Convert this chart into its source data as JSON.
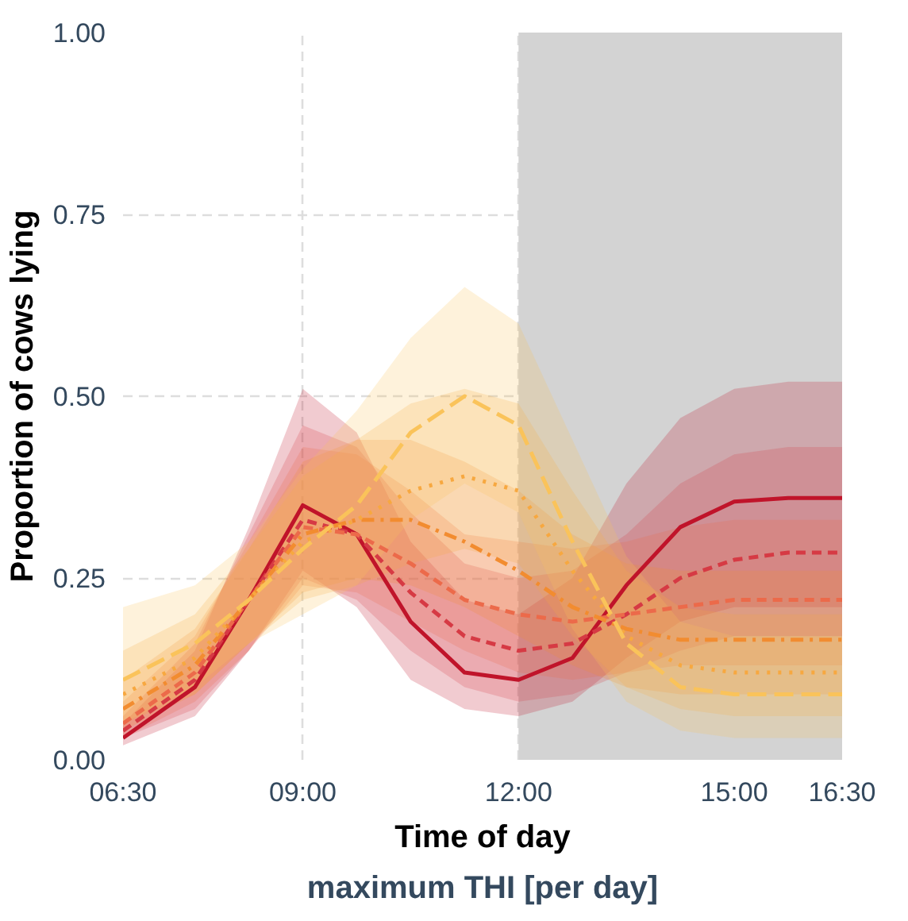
{
  "chart_data": {
    "type": "line",
    "xlabel": "Time of day",
    "ylabel": "Proportion of cows lying",
    "legend_title": "maximum THI [per day]",
    "x": [
      6.5,
      7.5,
      8.25,
      9,
      9.75,
      10.5,
      11.25,
      12,
      12.75,
      13.5,
      14.25,
      15,
      15.75,
      16.5
    ],
    "xlim": [
      6.5,
      16.5
    ],
    "xticks": [
      {
        "value": 6.5,
        "label": "06:30"
      },
      {
        "value": 9,
        "label": "09:00"
      },
      {
        "value": 12,
        "label": "12:00"
      },
      {
        "value": 15,
        "label": "15:00"
      },
      {
        "value": 16.5,
        "label": "16:30"
      }
    ],
    "ylim": [
      0,
      1
    ],
    "yticks": [
      {
        "value": 0,
        "label": "0.00"
      },
      {
        "value": 0.25,
        "label": "0.25"
      },
      {
        "value": 0.5,
        "label": "0.50"
      },
      {
        "value": 0.75,
        "label": "0.75"
      },
      {
        "value": 1,
        "label": "1.00"
      }
    ],
    "grid": true,
    "bands": [
      {
        "axis": "x",
        "from": 12,
        "to": 16.5,
        "color": "#d3d3d3"
      }
    ],
    "series": [
      {
        "color": "#c0142a",
        "line_style": "solid",
        "values": [
          0.03,
          0.1,
          0.22,
          0.35,
          0.31,
          0.19,
          0.12,
          0.11,
          0.14,
          0.24,
          0.32,
          0.355,
          0.36,
          0.36
        ],
        "lower": [
          0.02,
          0.06,
          0.15,
          0.26,
          0.21,
          0.11,
          0.07,
          0.06,
          0.08,
          0.14,
          0.19,
          0.21,
          0.21,
          0.21
        ],
        "upper": [
          0.05,
          0.15,
          0.32,
          0.51,
          0.45,
          0.3,
          0.22,
          0.2,
          0.25,
          0.38,
          0.47,
          0.51,
          0.52,
          0.52
        ]
      },
      {
        "color": "#d63a44",
        "line_style": "dashed",
        "values": [
          0.04,
          0.11,
          0.22,
          0.33,
          0.31,
          0.23,
          0.17,
          0.15,
          0.16,
          0.2,
          0.25,
          0.275,
          0.285,
          0.285
        ],
        "lower": [
          0.03,
          0.07,
          0.15,
          0.25,
          0.22,
          0.15,
          0.1,
          0.08,
          0.09,
          0.12,
          0.15,
          0.17,
          0.17,
          0.17
        ],
        "upper": [
          0.06,
          0.16,
          0.31,
          0.46,
          0.43,
          0.34,
          0.27,
          0.25,
          0.26,
          0.31,
          0.38,
          0.42,
          0.43,
          0.43
        ]
      },
      {
        "color": "#ec6a4a",
        "line_style": "dashed",
        "values": [
          0.05,
          0.12,
          0.22,
          0.32,
          0.31,
          0.27,
          0.22,
          0.2,
          0.19,
          0.2,
          0.21,
          0.22,
          0.22,
          0.22
        ],
        "lower": [
          0.03,
          0.08,
          0.15,
          0.24,
          0.23,
          0.19,
          0.15,
          0.12,
          0.11,
          0.12,
          0.13,
          0.13,
          0.13,
          0.13
        ],
        "upper": [
          0.08,
          0.17,
          0.3,
          0.43,
          0.42,
          0.37,
          0.31,
          0.3,
          0.29,
          0.3,
          0.32,
          0.33,
          0.33,
          0.33
        ]
      },
      {
        "color": "#f28c30",
        "line_style": "dotdash",
        "values": [
          0.07,
          0.13,
          0.22,
          0.31,
          0.33,
          0.33,
          0.3,
          0.26,
          0.21,
          0.18,
          0.165,
          0.165,
          0.165,
          0.165
        ],
        "lower": [
          0.04,
          0.09,
          0.16,
          0.23,
          0.25,
          0.24,
          0.21,
          0.17,
          0.13,
          0.1,
          0.09,
          0.09,
          0.09,
          0.09
        ],
        "upper": [
          0.11,
          0.18,
          0.29,
          0.41,
          0.44,
          0.44,
          0.41,
          0.37,
          0.31,
          0.27,
          0.26,
          0.26,
          0.26,
          0.26
        ]
      },
      {
        "color": "#f7a840",
        "line_style": "dotted",
        "values": [
          0.09,
          0.14,
          0.22,
          0.3,
          0.33,
          0.37,
          0.39,
          0.37,
          0.26,
          0.17,
          0.13,
          0.12,
          0.12,
          0.12
        ],
        "lower": [
          0.05,
          0.09,
          0.16,
          0.22,
          0.24,
          0.27,
          0.29,
          0.27,
          0.17,
          0.1,
          0.07,
          0.06,
          0.06,
          0.06
        ],
        "upper": [
          0.15,
          0.2,
          0.29,
          0.39,
          0.44,
          0.49,
          0.51,
          0.49,
          0.37,
          0.26,
          0.21,
          0.2,
          0.2,
          0.2
        ]
      },
      {
        "color": "#fac35a",
        "line_style": "longdash",
        "values": [
          0.11,
          0.16,
          0.22,
          0.29,
          0.35,
          0.45,
          0.5,
          0.46,
          0.3,
          0.16,
          0.1,
          0.09,
          0.09,
          0.09
        ],
        "lower": [
          0.05,
          0.1,
          0.16,
          0.2,
          0.24,
          0.33,
          0.38,
          0.34,
          0.18,
          0.08,
          0.04,
          0.03,
          0.03,
          0.03
        ],
        "upper": [
          0.21,
          0.24,
          0.3,
          0.4,
          0.48,
          0.58,
          0.65,
          0.6,
          0.44,
          0.28,
          0.19,
          0.17,
          0.17,
          0.17
        ]
      }
    ]
  }
}
